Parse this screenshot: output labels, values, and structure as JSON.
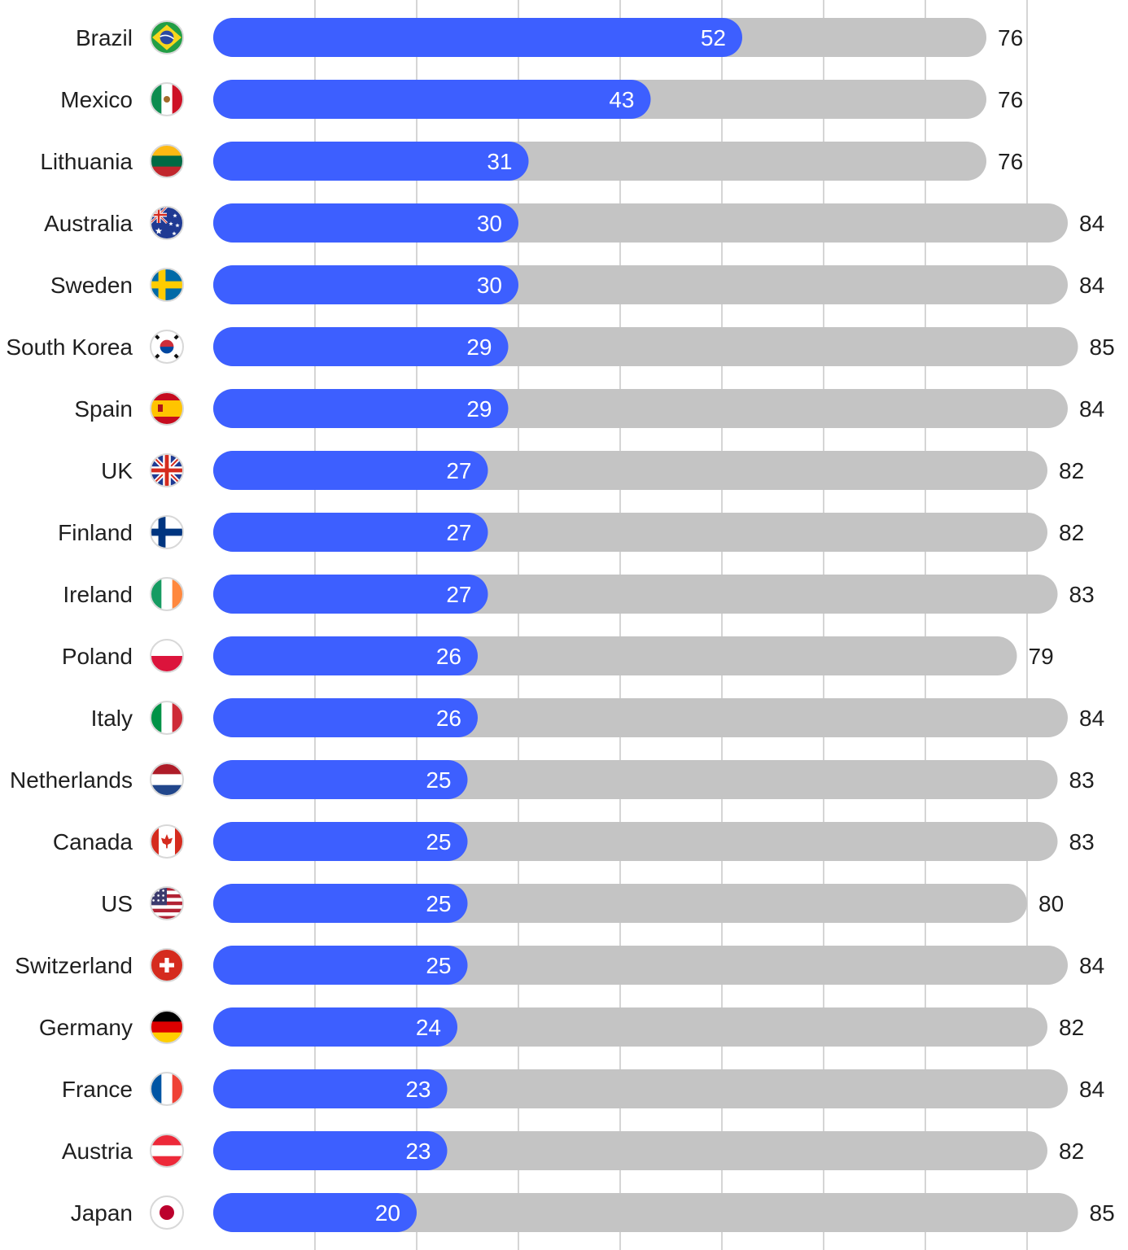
{
  "chart_data": {
    "type": "bar",
    "orientation": "horizontal",
    "grid": true,
    "xlim": [
      0,
      84
    ],
    "colors": {
      "value_bar": "#3d5fff",
      "total_bar": "#c4c4c4",
      "gridline": "#d5d5d5"
    },
    "categories": [
      "Brazil",
      "Mexico",
      "Lithuania",
      "Australia",
      "Sweden",
      "South Korea",
      "Spain",
      "UK",
      "Finland",
      "Ireland",
      "Poland",
      "Italy",
      "Netherlands",
      "Canada",
      "US",
      "Switzerland",
      "Germany",
      "France",
      "Austria",
      "Japan"
    ],
    "flags": [
      "brazil-flag-icon",
      "mexico-flag-icon",
      "lithuania-flag-icon",
      "australia-flag-icon",
      "sweden-flag-icon",
      "south-korea-flag-icon",
      "spain-flag-icon",
      "uk-flag-icon",
      "finland-flag-icon",
      "ireland-flag-icon",
      "poland-flag-icon",
      "italy-flag-icon",
      "netherlands-flag-icon",
      "canada-flag-icon",
      "us-flag-icon",
      "switzerland-flag-icon",
      "germany-flag-icon",
      "france-flag-icon",
      "austria-flag-icon",
      "japan-flag-icon"
    ],
    "series": [
      {
        "values": [
          52,
          43,
          31,
          30,
          30,
          29,
          29,
          27,
          27,
          27,
          26,
          26,
          25,
          25,
          25,
          25,
          24,
          23,
          23,
          20
        ]
      },
      {
        "values": [
          76,
          76,
          76,
          84,
          84,
          85,
          84,
          82,
          82,
          83,
          79,
          84,
          83,
          83,
          80,
          84,
          82,
          84,
          82,
          85
        ]
      }
    ]
  }
}
